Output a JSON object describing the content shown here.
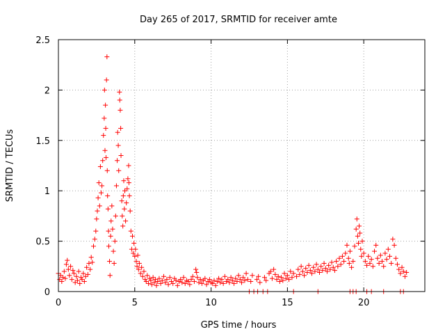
{
  "chart_data": {
    "type": "scatter",
    "title": "Day 265 of 2017, SRMTID for receiver amte",
    "xlabel": "GPS time / hours",
    "ylabel": "SRMTID / TECUs",
    "xlim": [
      0,
      24
    ],
    "ylim": [
      0,
      2.5
    ],
    "xticks": [
      0,
      5,
      10,
      15,
      20
    ],
    "xtick_labels": [
      "0",
      "5",
      "10",
      "15",
      "20"
    ],
    "yticks": [
      0,
      0.5,
      1,
      1.5,
      2,
      2.5
    ],
    "ytick_labels": [
      "0",
      "0.5",
      "1",
      "1.5",
      "2",
      "2.5"
    ],
    "grid": true,
    "marker": "+",
    "marker_color": "#ff0000",
    "series": [
      {
        "name": "SRMTID",
        "points": [
          [
            0.0,
            0.18
          ],
          [
            0.08,
            0.12
          ],
          [
            0.15,
            0.16
          ],
          [
            0.22,
            0.1
          ],
          [
            0.3,
            0.14
          ],
          [
            0.38,
            0.2
          ],
          [
            0.45,
            0.13
          ],
          [
            0.52,
            0.27
          ],
          [
            0.58,
            0.31
          ],
          [
            0.65,
            0.22
          ],
          [
            0.72,
            0.16
          ],
          [
            0.8,
            0.25
          ],
          [
            0.88,
            0.12
          ],
          [
            0.95,
            0.21
          ],
          [
            1.02,
            0.18
          ],
          [
            1.1,
            0.09
          ],
          [
            1.18,
            0.15
          ],
          [
            1.25,
            0.11
          ],
          [
            1.33,
            0.2
          ],
          [
            1.4,
            0.08
          ],
          [
            1.48,
            0.14
          ],
          [
            1.55,
            0.12
          ],
          [
            1.63,
            0.18
          ],
          [
            1.7,
            0.1
          ],
          [
            1.78,
            0.15
          ],
          [
            1.85,
            0.24
          ],
          [
            1.93,
            0.17
          ],
          [
            2.0,
            0.28
          ],
          [
            2.08,
            0.22
          ],
          [
            2.15,
            0.34
          ],
          [
            2.22,
            0.29
          ],
          [
            2.3,
            0.45
          ],
          [
            2.38,
            0.52
          ],
          [
            2.45,
            0.6
          ],
          [
            2.5,
            0.72
          ],
          [
            2.55,
            0.8
          ],
          [
            2.6,
            0.93
          ],
          [
            2.65,
            1.08
          ],
          [
            2.7,
            0.85
          ],
          [
            2.75,
            1.24
          ],
          [
            2.8,
            0.98
          ],
          [
            2.85,
            1.05
          ],
          [
            2.9,
            1.3
          ],
          [
            2.95,
            1.55
          ],
          [
            3.0,
            1.72
          ],
          [
            3.02,
            2.0
          ],
          [
            3.05,
            1.4
          ],
          [
            3.08,
            1.85
          ],
          [
            3.1,
            1.62
          ],
          [
            3.12,
            1.33
          ],
          [
            3.15,
            2.1
          ],
          [
            3.18,
            2.33
          ],
          [
            3.2,
            1.2
          ],
          [
            3.22,
            0.95
          ],
          [
            3.25,
            0.82
          ],
          [
            3.28,
            0.6
          ],
          [
            3.3,
            0.45
          ],
          [
            3.35,
            0.3
          ],
          [
            3.38,
            0.16
          ],
          [
            3.42,
            0.55
          ],
          [
            3.45,
            0.7
          ],
          [
            3.5,
            0.85
          ],
          [
            3.55,
            0.62
          ],
          [
            3.6,
            0.4
          ],
          [
            3.65,
            0.28
          ],
          [
            3.7,
            0.5
          ],
          [
            3.75,
            0.75
          ],
          [
            3.8,
            1.05
          ],
          [
            3.85,
            1.3
          ],
          [
            3.88,
            1.58
          ],
          [
            3.92,
            1.45
          ],
          [
            3.95,
            1.2
          ],
          [
            4.0,
            1.98
          ],
          [
            4.02,
            1.9
          ],
          [
            4.05,
            1.8
          ],
          [
            4.08,
            1.62
          ],
          [
            4.1,
            1.35
          ],
          [
            4.15,
            0.9
          ],
          [
            4.18,
            0.75
          ],
          [
            4.22,
            0.65
          ],
          [
            4.25,
            0.95
          ],
          [
            4.28,
            1.1
          ],
          [
            4.32,
            0.82
          ],
          [
            4.35,
            1.0
          ],
          [
            4.4,
            0.7
          ],
          [
            4.45,
            0.88
          ],
          [
            4.5,
            1.02
          ],
          [
            4.55,
            1.12
          ],
          [
            4.6,
            1.25
          ],
          [
            4.62,
            1.08
          ],
          [
            4.65,
            0.95
          ],
          [
            4.7,
            0.8
          ],
          [
            4.75,
            0.6
          ],
          [
            4.8,
            0.42
          ],
          [
            4.85,
            0.55
          ],
          [
            4.9,
            0.38
          ],
          [
            4.95,
            0.48
          ],
          [
            5.0,
            0.35
          ],
          [
            5.05,
            0.42
          ],
          [
            5.1,
            0.3
          ],
          [
            5.15,
            0.25
          ],
          [
            5.2,
            0.36
          ],
          [
            5.25,
            0.22
          ],
          [
            5.3,
            0.28
          ],
          [
            5.38,
            0.18
          ],
          [
            5.45,
            0.24
          ],
          [
            5.52,
            0.15
          ],
          [
            5.6,
            0.2
          ],
          [
            5.68,
            0.12
          ],
          [
            5.75,
            0.1
          ],
          [
            5.82,
            0.16
          ],
          [
            5.9,
            0.08
          ],
          [
            5.98,
            0.13
          ],
          [
            6.05,
            0.11
          ],
          [
            6.12,
            0.07
          ],
          [
            6.2,
            0.14
          ],
          [
            6.28,
            0.09
          ],
          [
            6.35,
            0.12
          ],
          [
            6.42,
            0.06
          ],
          [
            6.5,
            0.1
          ],
          [
            6.6,
            0.13
          ],
          [
            6.7,
            0.08
          ],
          [
            6.8,
            0.11
          ],
          [
            6.9,
            0.15
          ],
          [
            7.0,
            0.09
          ],
          [
            7.1,
            0.12
          ],
          [
            7.2,
            0.07
          ],
          [
            7.3,
            0.14
          ],
          [
            7.4,
            0.1
          ],
          [
            7.5,
            0.08
          ],
          [
            7.6,
            0.13
          ],
          [
            7.7,
            0.11
          ],
          [
            7.8,
            0.06
          ],
          [
            7.9,
            0.1
          ],
          [
            8.0,
            0.12
          ],
          [
            8.1,
            0.09
          ],
          [
            8.2,
            0.14
          ],
          [
            8.3,
            0.08
          ],
          [
            8.4,
            0.11
          ],
          [
            8.5,
            0.1
          ],
          [
            8.6,
            0.07
          ],
          [
            8.7,
            0.12
          ],
          [
            8.8,
            0.15
          ],
          [
            8.9,
            0.1
          ],
          [
            9.0,
            0.22
          ],
          [
            9.05,
            0.19
          ],
          [
            9.1,
            0.14
          ],
          [
            9.2,
            0.09
          ],
          [
            9.3,
            0.12
          ],
          [
            9.4,
            0.08
          ],
          [
            9.5,
            0.11
          ],
          [
            9.6,
            0.13
          ],
          [
            9.7,
            0.07
          ],
          [
            9.8,
            0.1
          ],
          [
            9.9,
            0.12
          ],
          [
            10.0,
            0.09
          ],
          [
            10.1,
            0.08
          ],
          [
            10.2,
            0.11
          ],
          [
            10.3,
            0.06
          ],
          [
            10.4,
            0.1
          ],
          [
            10.5,
            0.13
          ],
          [
            10.6,
            0.09
          ],
          [
            10.7,
            0.12
          ],
          [
            10.8,
            0.08
          ],
          [
            10.9,
            0.15
          ],
          [
            11.0,
            0.1
          ],
          [
            11.1,
            0.12
          ],
          [
            11.2,
            0.09
          ],
          [
            11.3,
            0.14
          ],
          [
            11.4,
            0.11
          ],
          [
            11.5,
            0.08
          ],
          [
            11.6,
            0.13
          ],
          [
            11.7,
            0.1
          ],
          [
            11.8,
            0.16
          ],
          [
            11.9,
            0.12
          ],
          [
            12.0,
            0.09
          ],
          [
            12.1,
            0.14
          ],
          [
            12.2,
            0.11
          ],
          [
            12.3,
            0.18
          ],
          [
            12.4,
            0.12
          ],
          [
            12.6,
            0.1
          ],
          [
            12.7,
            0.16
          ],
          [
            13.0,
            0.12
          ],
          [
            13.1,
            0.15
          ],
          [
            13.2,
            0.09
          ],
          [
            13.5,
            0.14
          ],
          [
            13.6,
            0.11
          ],
          [
            13.8,
            0.18
          ],
          [
            13.9,
            0.2
          ],
          [
            14.0,
            0.13
          ],
          [
            14.1,
            0.22
          ],
          [
            14.2,
            0.17
          ],
          [
            14.3,
            0.12
          ],
          [
            14.4,
            0.15
          ],
          [
            14.5,
            0.1
          ],
          [
            14.6,
            0.14
          ],
          [
            14.7,
            0.11
          ],
          [
            14.8,
            0.18
          ],
          [
            14.9,
            0.13
          ],
          [
            15.0,
            0.16
          ],
          [
            15.1,
            0.12
          ],
          [
            15.2,
            0.2
          ],
          [
            15.3,
            0.14
          ],
          [
            15.4,
            0.18
          ],
          [
            15.6,
            0.15
          ],
          [
            15.7,
            0.22
          ],
          [
            15.8,
            0.17
          ],
          [
            15.9,
            0.25
          ],
          [
            16.0,
            0.2
          ],
          [
            16.1,
            0.16
          ],
          [
            16.2,
            0.23
          ],
          [
            16.3,
            0.19
          ],
          [
            16.4,
            0.26
          ],
          [
            16.5,
            0.21
          ],
          [
            16.6,
            0.18
          ],
          [
            16.7,
            0.24
          ],
          [
            16.8,
            0.2
          ],
          [
            16.9,
            0.27
          ],
          [
            17.0,
            0.22
          ],
          [
            17.1,
            0.19
          ],
          [
            17.2,
            0.25
          ],
          [
            17.3,
            0.21
          ],
          [
            17.4,
            0.28
          ],
          [
            17.5,
            0.23
          ],
          [
            17.6,
            0.2
          ],
          [
            17.7,
            0.26
          ],
          [
            17.8,
            0.22
          ],
          [
            17.9,
            0.29
          ],
          [
            18.0,
            0.24
          ],
          [
            18.1,
            0.21
          ],
          [
            18.2,
            0.3
          ],
          [
            18.3,
            0.25
          ],
          [
            18.4,
            0.33
          ],
          [
            18.5,
            0.27
          ],
          [
            18.6,
            0.35
          ],
          [
            18.7,
            0.3
          ],
          [
            18.8,
            0.38
          ],
          [
            18.9,
            0.46
          ],
          [
            19.0,
            0.33
          ],
          [
            19.05,
            0.28
          ],
          [
            19.1,
            0.4
          ],
          [
            19.2,
            0.24
          ],
          [
            19.3,
            0.3
          ],
          [
            19.4,
            0.45
          ],
          [
            19.5,
            0.62
          ],
          [
            19.55,
            0.72
          ],
          [
            19.6,
            0.55
          ],
          [
            19.65,
            0.48
          ],
          [
            19.7,
            0.65
          ],
          [
            19.75,
            0.58
          ],
          [
            19.8,
            0.42
          ],
          [
            19.85,
            0.35
          ],
          [
            19.9,
            0.5
          ],
          [
            20.0,
            0.38
          ],
          [
            20.1,
            0.3
          ],
          [
            20.2,
            0.26
          ],
          [
            20.3,
            0.35
          ],
          [
            20.4,
            0.28
          ],
          [
            20.5,
            0.32
          ],
          [
            20.6,
            0.25
          ],
          [
            20.7,
            0.4
          ],
          [
            20.8,
            0.46
          ],
          [
            20.9,
            0.33
          ],
          [
            21.0,
            0.28
          ],
          [
            21.1,
            0.36
          ],
          [
            21.2,
            0.3
          ],
          [
            21.3,
            0.25
          ],
          [
            21.4,
            0.38
          ],
          [
            21.5,
            0.32
          ],
          [
            21.6,
            0.42
          ],
          [
            21.7,
            0.35
          ],
          [
            21.8,
            0.28
          ],
          [
            21.9,
            0.52
          ],
          [
            22.0,
            0.46
          ],
          [
            22.1,
            0.33
          ],
          [
            22.2,
            0.27
          ],
          [
            22.3,
            0.22
          ],
          [
            22.4,
            0.18
          ],
          [
            22.5,
            0.24
          ],
          [
            22.6,
            0.2
          ],
          [
            22.7,
            0.15
          ],
          [
            22.8,
            0.19
          ],
          [
            12.5,
            0.0
          ],
          [
            12.8,
            0.0
          ],
          [
            13.05,
            0.0
          ],
          [
            13.4,
            0.0
          ],
          [
            13.7,
            0.0
          ],
          [
            15.4,
            0.0
          ],
          [
            17.0,
            0.0
          ],
          [
            19.1,
            0.0
          ],
          [
            19.3,
            0.0
          ],
          [
            19.5,
            0.0
          ],
          [
            20.2,
            0.0
          ],
          [
            20.5,
            0.0
          ],
          [
            21.3,
            0.0
          ],
          [
            22.4,
            0.0
          ],
          [
            22.6,
            0.0
          ]
        ]
      }
    ]
  }
}
